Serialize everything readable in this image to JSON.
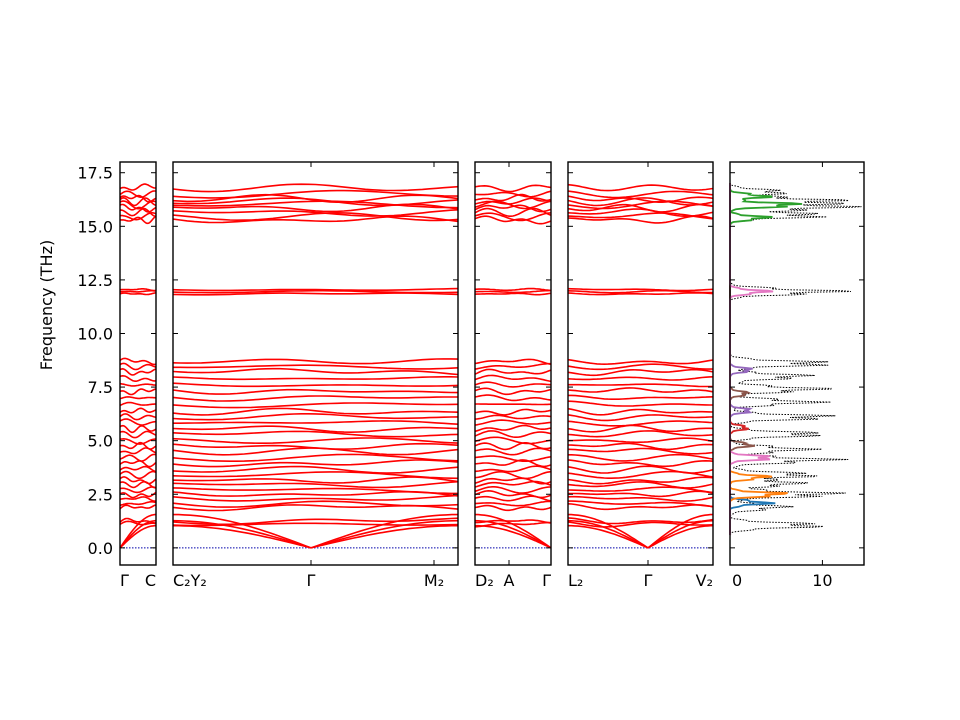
{
  "chart_data": {
    "type": "line",
    "ylabel": "Frequency (THz)",
    "ylim": [
      -0.8,
      18.0
    ],
    "yticks": [
      "0.0",
      "2.5",
      "5.0",
      "7.5",
      "10.0",
      "12.5",
      "15.0",
      "17.5"
    ],
    "ytick_values": [
      0.0,
      2.5,
      5.0,
      7.5,
      10.0,
      12.5,
      15.0,
      17.5
    ],
    "band_color": "#ff0000",
    "zero_line_color": "#0000aa",
    "segments": [
      {
        "xlabels": [
          "Γ",
          "C"
        ]
      },
      {
        "xlabels": [
          "C₂Y₂",
          "Γ",
          "M₂"
        ]
      },
      {
        "xlabels": [
          "D₂",
          "A",
          "Γ"
        ]
      },
      {
        "xlabels": [
          "L₂",
          "Γ",
          "V₂"
        ]
      }
    ],
    "band_frequencies": [
      1.1,
      1.25,
      1.9,
      2.05,
      2.3,
      2.5,
      2.7,
      2.95,
      3.15,
      3.4,
      3.65,
      3.95,
      4.2,
      4.5,
      4.75,
      5.0,
      5.3,
      5.55,
      5.85,
      6.1,
      6.35,
      6.7,
      7.0,
      7.3,
      7.6,
      7.9,
      8.2,
      8.45,
      8.7,
      11.85,
      11.95,
      12.05,
      15.3,
      15.45,
      15.65,
      15.85,
      16.0,
      16.15,
      16.3,
      16.5,
      16.8
    ],
    "acoustic_modes": {
      "frequency_at_gamma": 0.0,
      "frequency_at_zone_edge": 1.15
    },
    "dos": {
      "xticks": [
        "0",
        "10"
      ],
      "xtick_values": [
        0,
        10
      ],
      "xlim": [
        0,
        14.5
      ],
      "total_color": "#000000",
      "partial_colors": [
        "#1f77b4",
        "#ff7f0e",
        "#2ca02c",
        "#d62728",
        "#9467bd",
        "#8c564b",
        "#e377c2",
        "#7f7f7f"
      ],
      "total_peaks": [
        {
          "f": 1.05,
          "v": 12
        },
        {
          "f": 1.9,
          "v": 7
        },
        {
          "f": 2.5,
          "v": 14
        },
        {
          "f": 3.0,
          "v": 9
        },
        {
          "f": 3.4,
          "v": 11
        },
        {
          "f": 4.1,
          "v": 13
        },
        {
          "f": 4.6,
          "v": 10
        },
        {
          "f": 5.3,
          "v": 12
        },
        {
          "f": 6.1,
          "v": 13
        },
        {
          "f": 6.8,
          "v": 11
        },
        {
          "f": 7.4,
          "v": 12
        },
        {
          "f": 8.0,
          "v": 10
        },
        {
          "f": 8.6,
          "v": 13
        },
        {
          "f": 11.95,
          "v": 14
        },
        {
          "f": 15.5,
          "v": 12
        },
        {
          "f": 15.9,
          "v": 14
        },
        {
          "f": 16.2,
          "v": 13
        },
        {
          "f": 16.6,
          "v": 7
        }
      ],
      "partial_peaks": [
        {
          "f": 2.1,
          "v": 5,
          "c": 0
        },
        {
          "f": 2.5,
          "v": 7.5,
          "c": 1
        },
        {
          "f": 3.3,
          "v": 5,
          "c": 1
        },
        {
          "f": 4.2,
          "v": 6,
          "c": 6
        },
        {
          "f": 4.8,
          "v": 3,
          "c": 5
        },
        {
          "f": 5.6,
          "v": 2.5,
          "c": 3
        },
        {
          "f": 6.4,
          "v": 3,
          "c": 4
        },
        {
          "f": 7.2,
          "v": 2.5,
          "c": 5
        },
        {
          "f": 8.3,
          "v": 3,
          "c": 4
        },
        {
          "f": 11.95,
          "v": 5,
          "c": 6
        },
        {
          "f": 15.4,
          "v": 5,
          "c": 2
        },
        {
          "f": 16.0,
          "v": 9.5,
          "c": 2
        },
        {
          "f": 16.4,
          "v": 5,
          "c": 2
        }
      ]
    }
  }
}
